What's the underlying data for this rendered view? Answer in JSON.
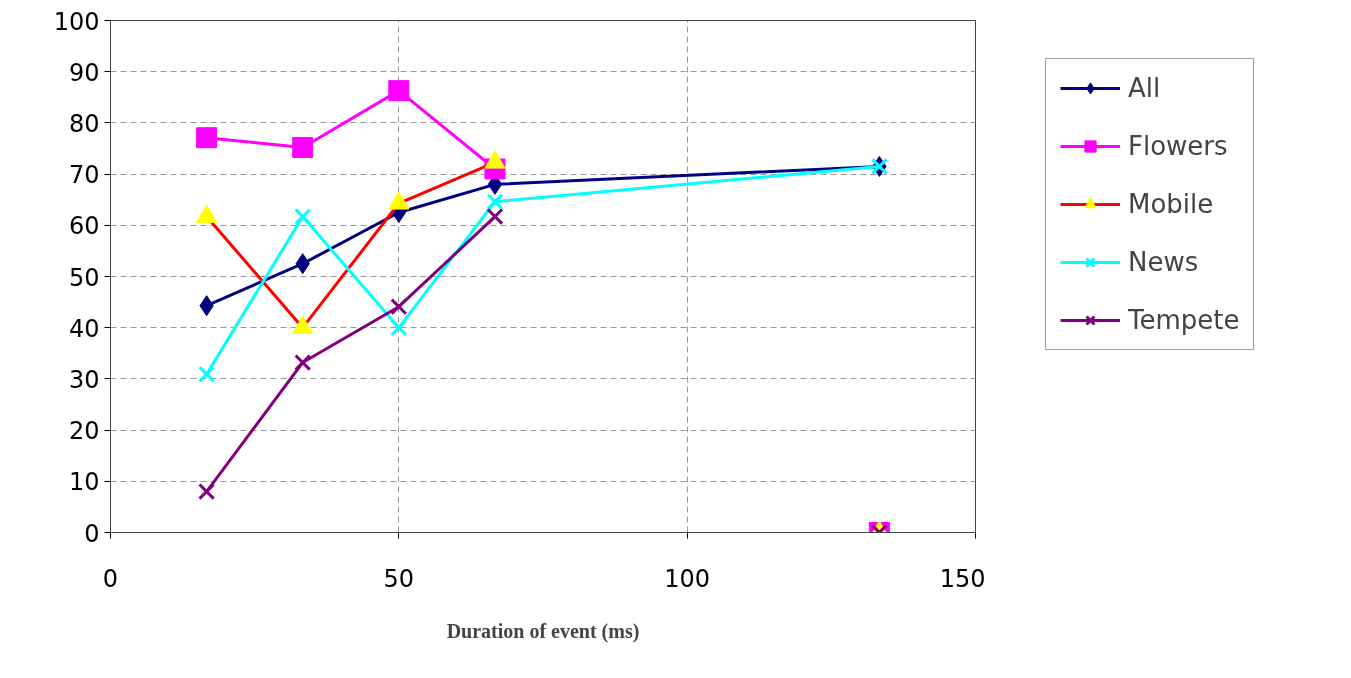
{
  "chart_data": {
    "type": "line",
    "xlabel": "Duration of event (ms)",
    "xlim": [
      0,
      150
    ],
    "xticks": [
      0,
      50,
      100,
      150
    ],
    "ylim": [
      0,
      100
    ],
    "yticks": [
      0,
      10,
      20,
      30,
      40,
      50,
      60,
      70,
      80,
      90,
      100
    ],
    "grid": true,
    "legend": "right",
    "line_style": "solid",
    "series": [
      {
        "name": "All",
        "color": "#000080",
        "marker": "diamond",
        "x": [
          16.67,
          33.33,
          50,
          66.67,
          133.33
        ],
        "values": [
          44.3,
          52.5,
          62.5,
          68.0,
          71.5
        ]
      },
      {
        "name": "Flowers",
        "color": "#ff00ff",
        "marker": "square",
        "x": [
          16.67,
          33.33,
          50,
          66.67,
          100,
          133.33
        ],
        "values": [
          77.1,
          75.2,
          86.3,
          71.0,
          null,
          0
        ]
      },
      {
        "name": "Mobile",
        "color": "#ff0000",
        "colors": [
          "#ffff00",
          "#ffff00",
          "#ffff00",
          "#ffff00",
          "#ffff00",
          "#ffff00"
        ],
        "marker": "triangle",
        "x": [
          16.67,
          33.33,
          50,
          66.67,
          100,
          133.33
        ],
        "values": [
          61.7,
          40.0,
          64.3,
          72.3,
          null,
          0
        ]
      },
      {
        "name": "News",
        "color": "#00ffff",
        "marker": "cross",
        "x": [
          16.67,
          33.33,
          50,
          66.67,
          133.33
        ],
        "values": [
          30.9,
          61.7,
          40.0,
          64.6,
          71.5
        ]
      },
      {
        "name": "Tempete",
        "color": "#800080",
        "marker": "cross",
        "x": [
          16.67,
          33.33,
          50,
          66.67,
          100,
          133.33
        ],
        "values": [
          8.0,
          33.2,
          44.1,
          61.7,
          null,
          0
        ]
      }
    ]
  }
}
